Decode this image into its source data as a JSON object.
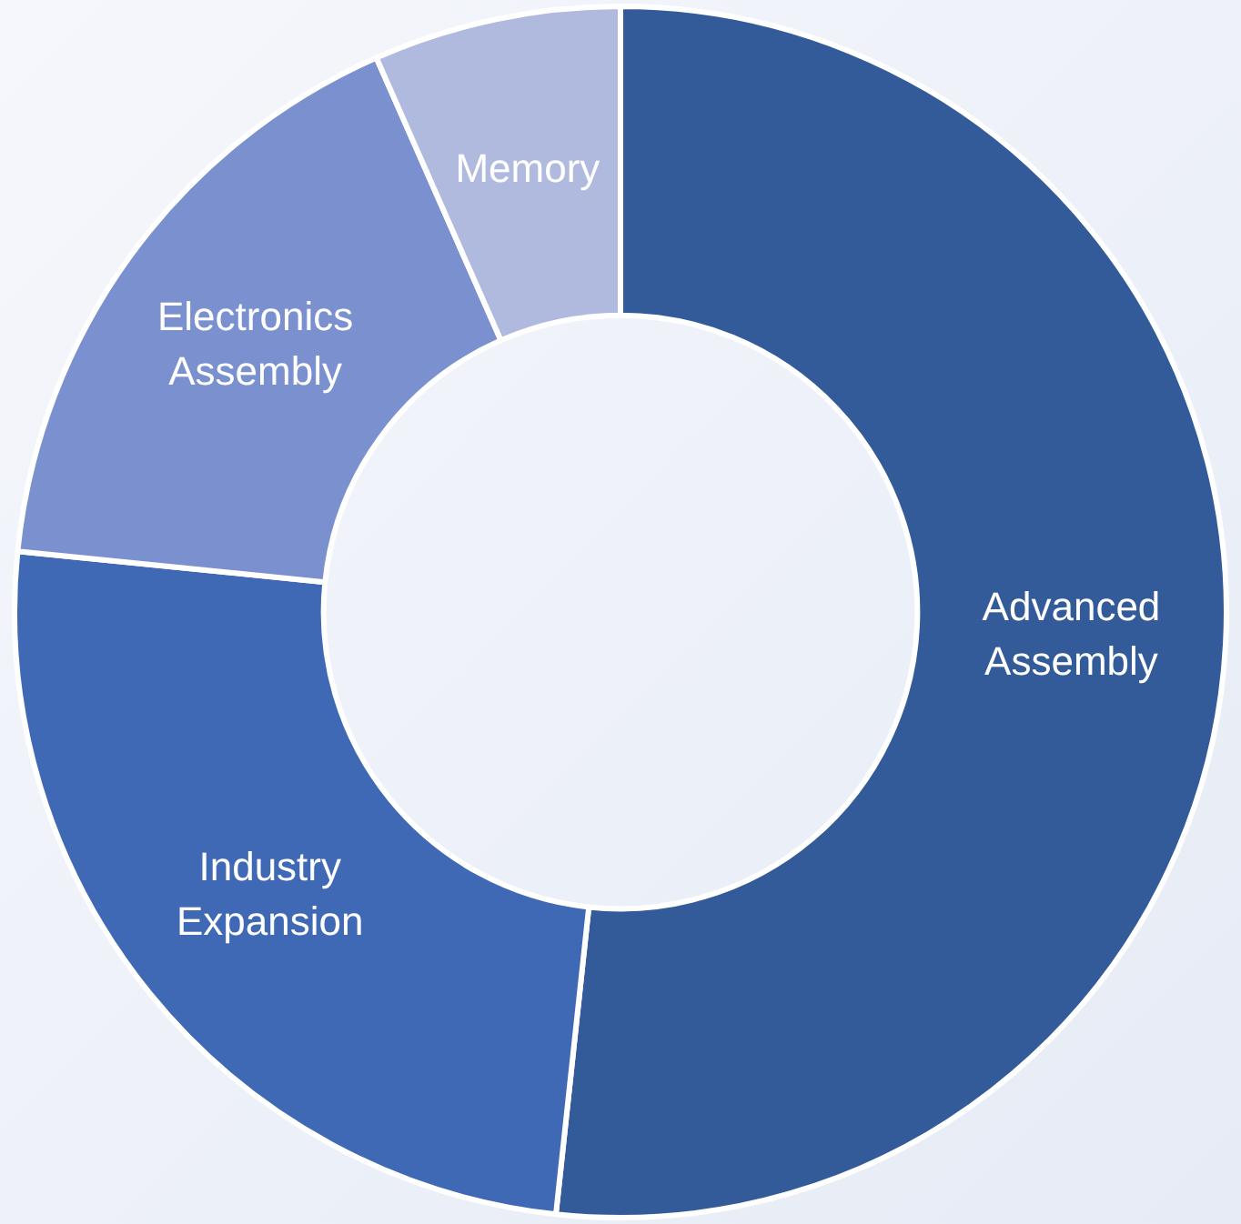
{
  "chart_data": {
    "type": "donut",
    "categories": [
      "Advanced Assembly",
      "Industry Expansion",
      "Electronics Assembly",
      "Memory"
    ],
    "values": [
      51.7,
      24.9,
      16.8,
      6.6
    ],
    "colors": [
      "#335a99",
      "#3f69b5",
      "#7a90cf",
      "#b0bade"
    ],
    "legend": false
  }
}
